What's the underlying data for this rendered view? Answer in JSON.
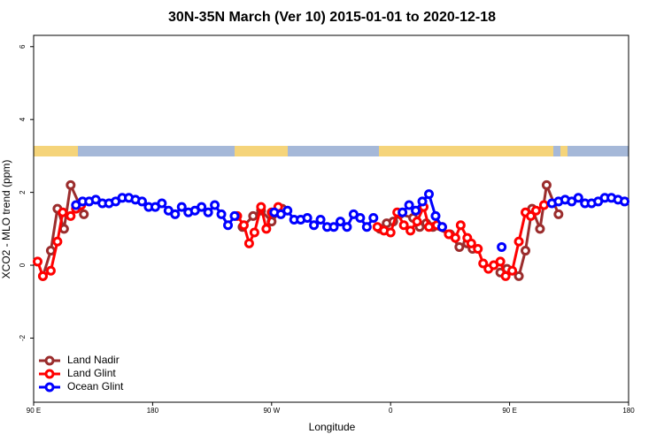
{
  "chart_data": {
    "type": "line",
    "title": "30N-35N March (Ver 10)   2015-01-01 to 2020-12-18",
    "x_label": "Longitude",
    "y_label": "XCO2 - MLO trend (ppm)",
    "xlim": [
      90,
      540
    ],
    "ylim": [
      -3.76,
      6.31
    ],
    "xticks": [
      {
        "value": 90,
        "label": "90 E"
      },
      180,
      {
        "value": 270,
        "label": "90 W"
      },
      {
        "value": 360,
        "label": "0"
      },
      {
        "value": 450,
        "label": "90 E"
      },
      {
        "value": 540,
        "label": "180"
      }
    ],
    "yticks": [
      -2,
      0,
      2,
      4,
      6
    ],
    "legend": "bottom-left",
    "series": [
      {
        "name": "Land Nadir",
        "color": "#9b2d2d",
        "x": [
          97,
          103,
          108,
          113,
          118,
          128,
          null,
          248,
          256,
          262,
          270,
          278,
          null,
          352,
          357,
          362,
          367,
          377,
          382,
          387,
          392,
          405,
          412,
          418,
          422,
          null,
          443,
          448,
          457,
          462,
          467,
          473,
          478,
          487
        ],
        "values": [
          -0.3,
          0.4,
          1.55,
          1.0,
          2.2,
          1.4,
          null,
          1.05,
          1.35,
          1.5,
          1.2,
          1.55,
          null,
          1.0,
          1.15,
          1.2,
          1.4,
          1.3,
          1.05,
          1.15,
          1.05,
          0.85,
          0.5,
          0.6,
          0.45,
          null,
          -0.2,
          -0.1,
          -0.3,
          0.4,
          1.55,
          1.0,
          2.2,
          1.4
        ]
      },
      {
        "name": "Land Glint",
        "color": "#ff0000",
        "x": [
          93,
          97,
          103,
          108,
          112,
          118,
          122,
          126,
          null,
          244,
          249,
          253,
          257,
          262,
          266,
          270,
          275,
          null,
          350,
          355,
          360,
          365,
          370,
          375,
          380,
          385,
          389,
          395,
          399,
          404,
          409,
          413,
          418,
          421,
          426,
          430,
          434,
          438,
          443,
          447,
          452,
          457,
          462,
          466,
          470,
          476
        ],
        "values": [
          0.1,
          -0.3,
          -0.15,
          0.65,
          1.45,
          1.35,
          1.55,
          1.65,
          null,
          1.35,
          1.1,
          0.6,
          0.9,
          1.6,
          1.0,
          1.45,
          1.6,
          null,
          1.05,
          0.95,
          0.9,
          1.45,
          1.1,
          0.95,
          1.2,
          1.6,
          1.05,
          1.1,
          1.05,
          0.85,
          0.75,
          1.1,
          0.75,
          0.6,
          0.45,
          0.05,
          -0.1,
          0.0,
          0.1,
          -0.3,
          -0.15,
          0.65,
          1.45,
          1.35,
          1.5,
          1.65
        ]
      },
      {
        "name": "Ocean Glint",
        "color": "#0000ff",
        "x": [
          122,
          127,
          132,
          137,
          142,
          147,
          152,
          157,
          162,
          167,
          172,
          177,
          182,
          187,
          192,
          197,
          202,
          207,
          212,
          217,
          222,
          227,
          232,
          237,
          242,
          null,
          272,
          277,
          282,
          287,
          292,
          297,
          302,
          307,
          312,
          317,
          322,
          327,
          332,
          337,
          342,
          347,
          null,
          369,
          374,
          379,
          384,
          389,
          394,
          399,
          null,
          444,
          null,
          482,
          487,
          492,
          497,
          502,
          507,
          512,
          517,
          522,
          527,
          532,
          537
        ],
        "values": [
          1.65,
          1.75,
          1.75,
          1.8,
          1.7,
          1.7,
          1.75,
          1.85,
          1.85,
          1.8,
          1.75,
          1.6,
          1.6,
          1.7,
          1.5,
          1.4,
          1.6,
          1.45,
          1.5,
          1.6,
          1.45,
          1.65,
          1.4,
          1.1,
          1.35,
          null,
          1.45,
          1.4,
          1.5,
          1.25,
          1.25,
          1.3,
          1.1,
          1.25,
          1.05,
          1.05,
          1.2,
          1.05,
          1.4,
          1.3,
          1.05,
          1.3,
          null,
          1.45,
          1.65,
          1.5,
          1.75,
          1.95,
          1.35,
          1.05,
          null,
          0.5,
          null,
          1.7,
          1.75,
          1.8,
          1.75,
          1.85,
          1.7,
          1.7,
          1.75,
          1.85,
          1.85,
          1.8,
          1.75
        ]
      }
    ]
  }
}
